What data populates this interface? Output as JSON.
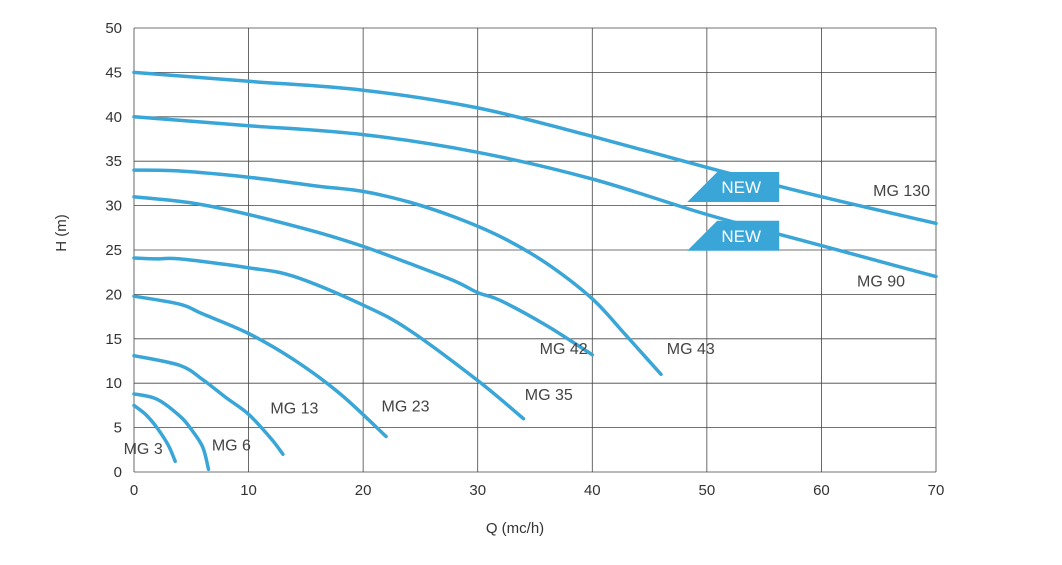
{
  "colors": {
    "curve": "#3aa6d8",
    "badge": "#3aa6d8",
    "grid": "#444444",
    "text": "#333333"
  },
  "chart_data": {
    "type": "line",
    "xlabel": "Q (mc/h)",
    "ylabel": "H (m)",
    "xlim": [
      0,
      70
    ],
    "ylim": [
      0,
      50
    ],
    "x_ticks": [
      0,
      10,
      20,
      30,
      40,
      50,
      60,
      70
    ],
    "y_ticks": [
      0,
      5,
      10,
      15,
      20,
      25,
      30,
      35,
      40,
      45,
      50
    ],
    "grid": true,
    "series": [
      {
        "name": "MG 3",
        "x": [
          0,
          1,
          2,
          3,
          3.6
        ],
        "y": [
          7.5,
          6.5,
          5,
          3,
          1.2
        ]
      },
      {
        "name": "MG 6",
        "x": [
          0,
          2,
          4,
          5,
          6,
          6.5
        ],
        "y": [
          8.8,
          8.2,
          6.3,
          4.8,
          2.8,
          0.3
        ]
      },
      {
        "name": "MG 13",
        "x": [
          0,
          4,
          6,
          8,
          10,
          12,
          13
        ],
        "y": [
          13.1,
          12,
          10.4,
          8.4,
          6.5,
          3.7,
          2
        ]
      },
      {
        "name": "MG 23",
        "x": [
          0,
          4,
          6,
          10,
          14,
          18,
          22
        ],
        "y": [
          19.8,
          18.9,
          17.8,
          15.6,
          12.6,
          8.8,
          4
        ]
      },
      {
        "name": "MG 35",
        "x": [
          0,
          2,
          4,
          10,
          14,
          20,
          24,
          30,
          34
        ],
        "y": [
          24.1,
          24,
          24,
          23,
          22,
          18.8,
          16,
          10.3,
          6
        ]
      },
      {
        "name": "MG 42",
        "x": [
          0,
          5,
          10,
          16,
          20,
          24,
          28,
          30,
          32,
          36,
          40
        ],
        "y": [
          31,
          30.3,
          29,
          27,
          25.4,
          23.5,
          21.5,
          20.2,
          19.3,
          16.5,
          13.2
        ]
      },
      {
        "name": "MG 43",
        "x": [
          0,
          4,
          10,
          16,
          20,
          24,
          28,
          32,
          36,
          40,
          43,
          46
        ],
        "y": [
          34,
          33.9,
          33.2,
          32.2,
          31.6,
          30.4,
          28.7,
          26.5,
          23.5,
          19.5,
          15.3,
          11
        ]
      },
      {
        "name": "MG 90",
        "x": [
          0,
          10,
          20,
          30,
          40,
          50,
          60,
          70
        ],
        "y": [
          40,
          39,
          38,
          36,
          33,
          29,
          25.5,
          22
        ]
      },
      {
        "name": "MG 130",
        "x": [
          0,
          10,
          20,
          30,
          40,
          50,
          60,
          70
        ],
        "y": [
          45,
          44,
          43,
          41,
          37.8,
          34.3,
          31,
          28
        ]
      }
    ],
    "curve_labels": [
      {
        "text": "MG 3",
        "x": 0.8,
        "y": 2.0
      },
      {
        "text": "MG 6",
        "x": 8.5,
        "y": 2.4
      },
      {
        "text": "MG 13",
        "x": 14,
        "y": 6.6
      },
      {
        "text": "MG 23",
        "x": 23.7,
        "y": 6.8
      },
      {
        "text": "MG 35",
        "x": 36.2,
        "y": 8.1
      },
      {
        "text": "MG 42",
        "x": 37.5,
        "y": 13.3
      },
      {
        "text": "MG 43",
        "x": 48.6,
        "y": 13.3
      },
      {
        "text": "MG 90",
        "x": 65.2,
        "y": 20.9
      },
      {
        "text": "MG 130",
        "x": 67,
        "y": 31.1
      }
    ],
    "badges": [
      {
        "text": "NEW",
        "x": 52.3,
        "y": 32.1
      },
      {
        "text": "NEW",
        "x": 52.3,
        "y": 26.6
      }
    ]
  }
}
